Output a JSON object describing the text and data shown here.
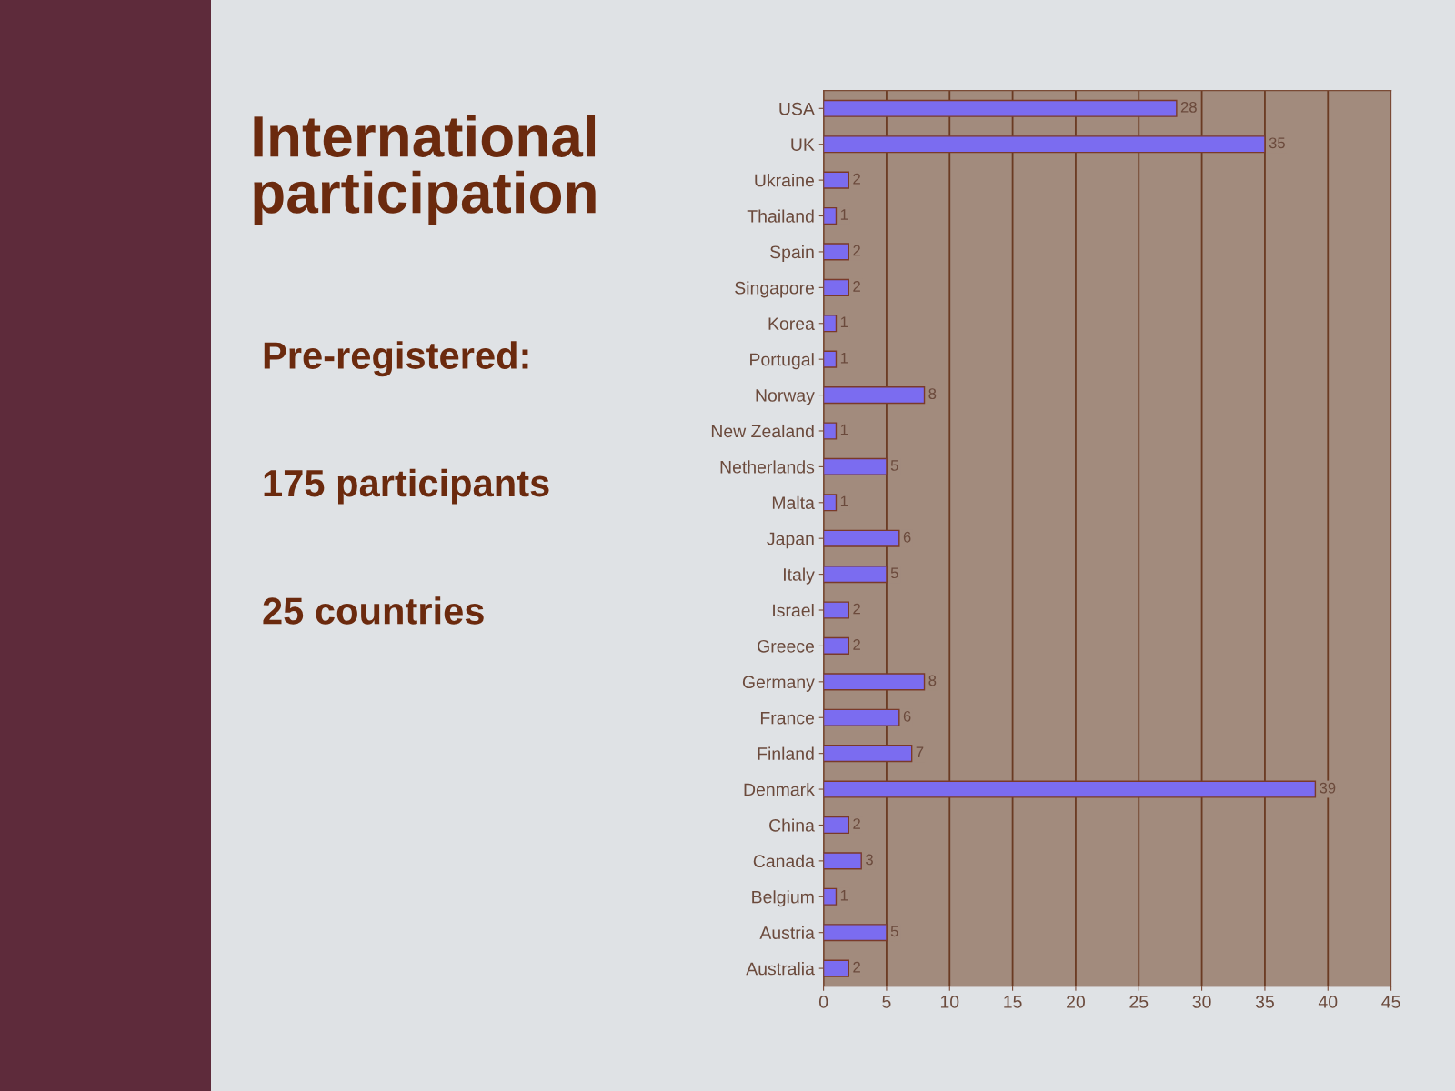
{
  "chart_data": {
    "type": "bar",
    "orientation": "horizontal",
    "title": "International\nparticipation",
    "annotations": [
      "Pre-registered:",
      "175 participants",
      "25 countries"
    ],
    "categories": [
      "USA",
      "UK",
      "Ukraine",
      "Thailand",
      "Spain",
      "Singapore",
      "Korea",
      "Portugal",
      "Norway",
      "New Zealand",
      "Netherlands",
      "Malta",
      "Japan",
      "Italy",
      "Israel",
      "Greece",
      "Germany",
      "France",
      "Finland",
      "Denmark",
      "China",
      "Canada",
      "Belgium",
      "Austria",
      "Australia"
    ],
    "values": [
      28,
      35,
      2,
      1,
      2,
      2,
      1,
      1,
      8,
      1,
      5,
      1,
      6,
      5,
      2,
      2,
      8,
      6,
      7,
      39,
      2,
      3,
      1,
      5,
      2
    ],
    "color": "#7b6cf0",
    "xlim": [
      0,
      45
    ],
    "xticks": [
      0,
      5,
      10,
      15,
      20,
      25,
      30,
      35,
      40,
      45
    ],
    "grid": "x",
    "data_labels": true
  }
}
